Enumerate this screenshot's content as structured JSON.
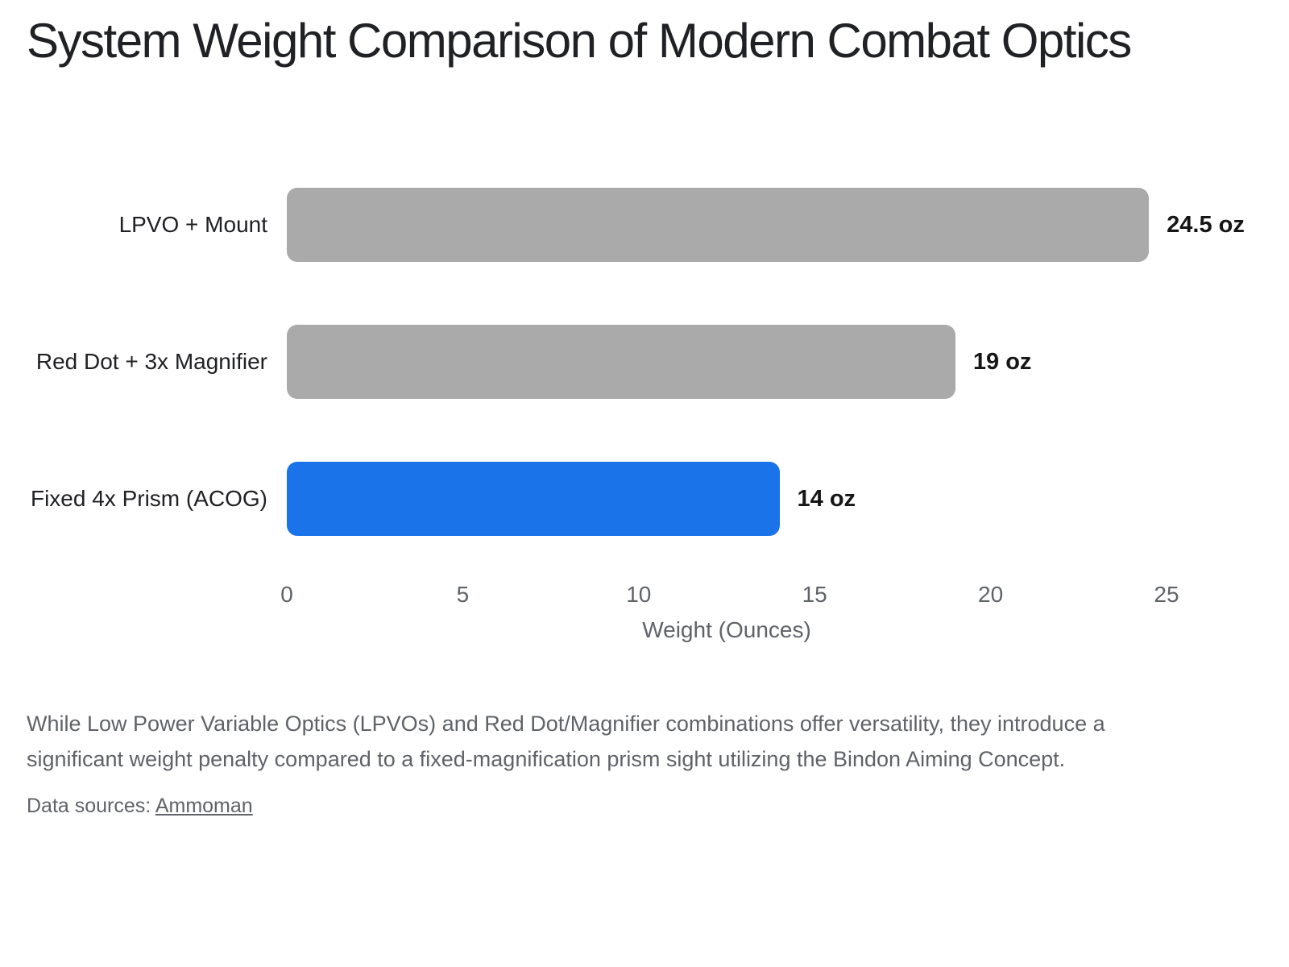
{
  "chart_data": {
    "type": "bar",
    "orientation": "horizontal",
    "title": "System Weight Comparison of Modern Combat Optics",
    "categories": [
      "LPVO + Mount",
      "Red Dot + 3x Magnifier",
      "Fixed 4x Prism (ACOG)"
    ],
    "values": [
      24.5,
      19,
      14
    ],
    "value_labels": [
      "24.5 oz",
      "19 oz",
      "14 oz"
    ],
    "unit": "oz",
    "bar_colors": [
      "#aaaaaa",
      "#aaaaaa",
      "#1a73e8"
    ],
    "palette": {
      "highlight": "#1a73e8",
      "muted": "#aaaaaa",
      "axis_text": "#5f6368",
      "label_text": "#202124"
    },
    "xlabel": "Weight (Ounces)",
    "xlim": [
      0,
      25
    ],
    "xticks": [
      0,
      5,
      10,
      15,
      20,
      25
    ],
    "grid": false,
    "legend": false
  },
  "caption": {
    "lines": [
      "While Low Power Variable Optics (LPVOs) and Red Dot/Magnifier combinations offer versatility, they introduce a",
      "significant weight penalty compared to a fixed-magnification prism sight utilizing the Bindon Aiming Concept."
    ]
  },
  "source": {
    "label": "Data sources:",
    "link_label": "Ammoman"
  }
}
